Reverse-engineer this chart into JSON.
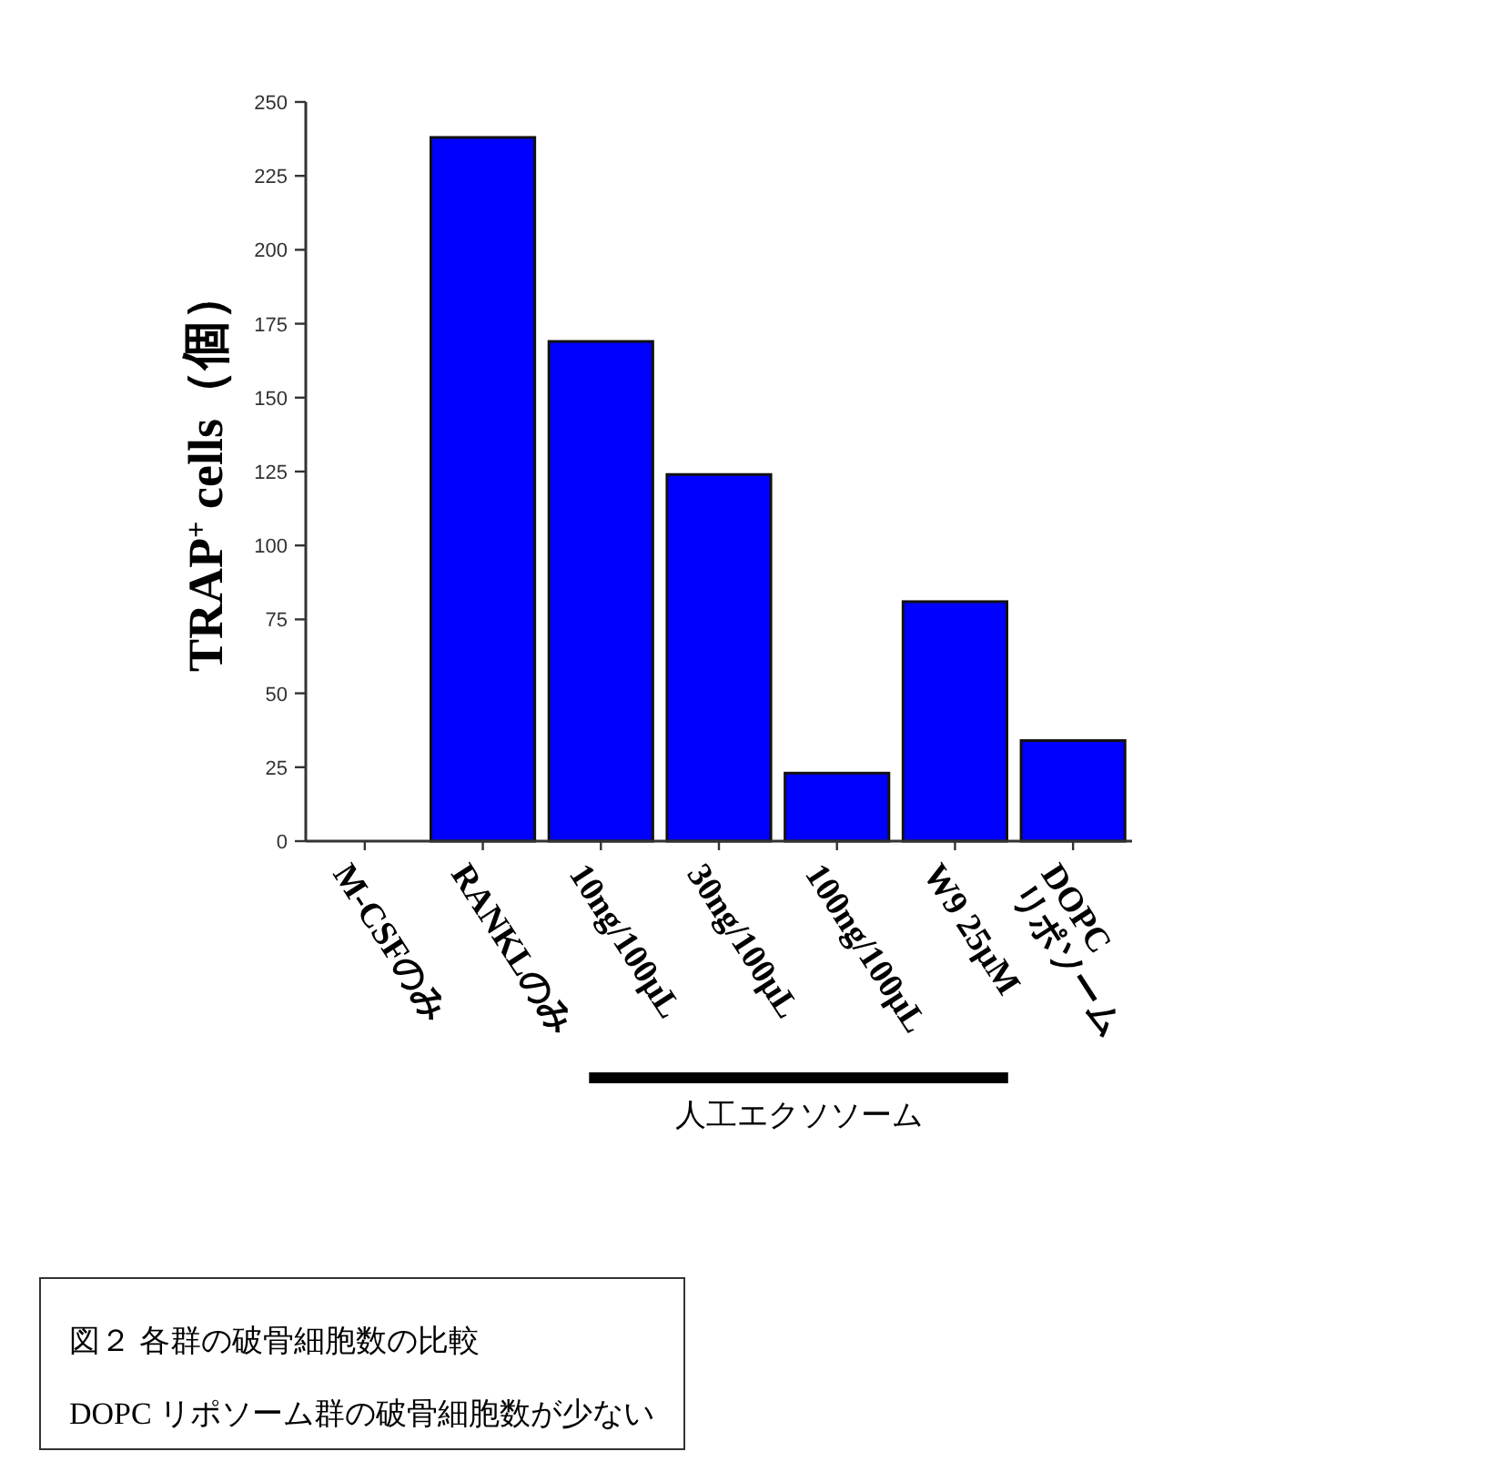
{
  "chart_data": {
    "type": "bar",
    "ylabel": "TRAP$^{+}$ cells（個）",
    "categories": [
      "M-CSFのみ",
      "RANKLのみ",
      "10ng/100μL",
      "30ng/100μL",
      "100ng/100μL",
      "W9 25μM",
      "DOPC\nリポソーム"
    ],
    "values": [
      0,
      238,
      169,
      124,
      23,
      81,
      34
    ],
    "color": "#0000ff",
    "ylim": [
      0,
      250
    ],
    "yticks": [
      0,
      25,
      50,
      75,
      100,
      125,
      150,
      175,
      200,
      225,
      250
    ],
    "annotations": [
      "人工エクソソーム",
      "図２ 各群の破骨細胞数の比較",
      "DOPC リポソーム群の破骨細胞数が少ない"
    ]
  }
}
